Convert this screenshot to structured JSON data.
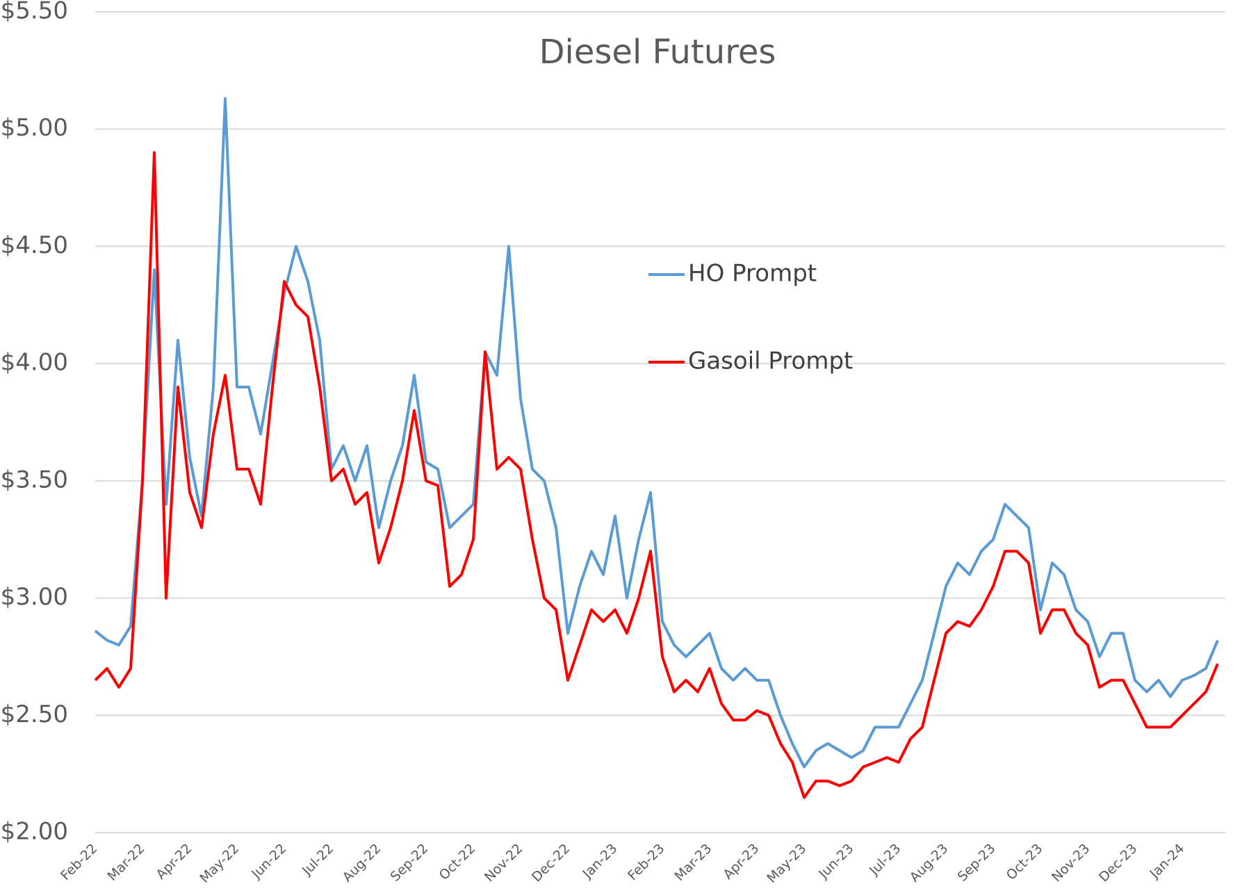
{
  "chart_data": {
    "type": "line",
    "title": "Diesel Futures",
    "categories": [
      "Feb-22",
      null,
      null,
      null,
      "Mar-22",
      null,
      null,
      null,
      "Apr-22",
      null,
      null,
      null,
      "May-22",
      null,
      null,
      null,
      "Jun-22",
      null,
      null,
      null,
      "Jul-22",
      null,
      null,
      null,
      "Aug-22",
      null,
      null,
      null,
      "Sep-22",
      null,
      null,
      null,
      "Oct-22",
      null,
      null,
      null,
      "Nov-22",
      null,
      null,
      null,
      "Dec-22",
      null,
      null,
      null,
      "Jan-23",
      null,
      null,
      null,
      "Feb-23",
      null,
      null,
      null,
      "Mar-23",
      null,
      null,
      null,
      "Apr-23",
      null,
      null,
      null,
      "May-23",
      null,
      null,
      null,
      "Jun-23",
      null,
      null,
      null,
      "Jul-23",
      null,
      null,
      null,
      "Aug-23",
      null,
      null,
      null,
      "Sep-23",
      null,
      null,
      null,
      "Oct-23",
      null,
      null,
      null,
      "Nov-23",
      null,
      null,
      null,
      "Dec-23",
      null,
      null,
      null,
      "Jan-24",
      null,
      null,
      null
    ],
    "series": [
      {
        "name": "HO Prompt",
        "color": "#5b9bd5",
        "values": [
          2.86,
          2.82,
          2.8,
          2.88,
          3.5,
          4.4,
          3.4,
          4.1,
          3.6,
          3.35,
          3.9,
          5.13,
          3.9,
          3.9,
          3.7,
          4.0,
          4.3,
          4.5,
          4.35,
          4.1,
          3.55,
          3.65,
          3.5,
          3.65,
          3.3,
          3.5,
          3.65,
          3.95,
          3.58,
          3.55,
          3.3,
          3.35,
          3.4,
          4.05,
          3.95,
          4.5,
          3.85,
          3.55,
          3.5,
          3.3,
          2.85,
          3.05,
          3.2,
          3.1,
          3.35,
          3.0,
          3.25,
          3.45,
          2.9,
          2.8,
          2.75,
          2.8,
          2.85,
          2.7,
          2.65,
          2.7,
          2.65,
          2.65,
          2.5,
          2.38,
          2.28,
          2.35,
          2.38,
          2.35,
          2.32,
          2.35,
          2.45,
          2.45,
          2.45,
          2.55,
          2.65,
          2.85,
          3.05,
          3.15,
          3.1,
          3.2,
          3.25,
          3.4,
          3.35,
          3.3,
          2.95,
          3.15,
          3.1,
          2.95,
          2.9,
          2.75,
          2.85,
          2.85,
          2.65,
          2.6,
          2.65,
          2.58,
          2.65,
          2.67,
          2.7,
          2.82
        ]
      },
      {
        "name": "Gasoil Prompt",
        "color": "#ff0000",
        "values": [
          2.65,
          2.7,
          2.62,
          2.7,
          3.5,
          4.9,
          3.0,
          3.9,
          3.45,
          3.3,
          3.7,
          3.95,
          3.55,
          3.55,
          3.4,
          3.9,
          4.35,
          4.25,
          4.2,
          3.9,
          3.5,
          3.55,
          3.4,
          3.45,
          3.15,
          3.3,
          3.5,
          3.8,
          3.5,
          3.48,
          3.05,
          3.1,
          3.25,
          4.05,
          3.55,
          3.6,
          3.55,
          3.25,
          3.0,
          2.95,
          2.65,
          2.8,
          2.95,
          2.9,
          2.95,
          2.85,
          3.0,
          3.2,
          2.75,
          2.6,
          2.65,
          2.6,
          2.7,
          2.55,
          2.48,
          2.48,
          2.52,
          2.5,
          2.38,
          2.3,
          2.15,
          2.22,
          2.22,
          2.2,
          2.22,
          2.28,
          2.3,
          2.32,
          2.3,
          2.4,
          2.45,
          2.65,
          2.85,
          2.9,
          2.88,
          2.95,
          3.05,
          3.2,
          3.2,
          3.15,
          2.85,
          2.95,
          2.95,
          2.85,
          2.8,
          2.62,
          2.65,
          2.65,
          2.55,
          2.45,
          2.45,
          2.45,
          2.5,
          2.55,
          2.6,
          2.72
        ]
      }
    ],
    "ylim": [
      2.0,
      5.5
    ],
    "yticks": [
      {
        "value": 2.0,
        "label": "$2.00"
      },
      {
        "value": 2.5,
        "label": "$2.50"
      },
      {
        "value": 3.0,
        "label": "$3.00"
      },
      {
        "value": 3.5,
        "label": "$3.50"
      },
      {
        "value": 4.0,
        "label": "$4.00"
      },
      {
        "value": 4.5,
        "label": "$4.50"
      },
      {
        "value": 5.0,
        "label": "$5.00"
      },
      {
        "value": 5.5,
        "label": "$5.50"
      }
    ],
    "grid": true
  }
}
